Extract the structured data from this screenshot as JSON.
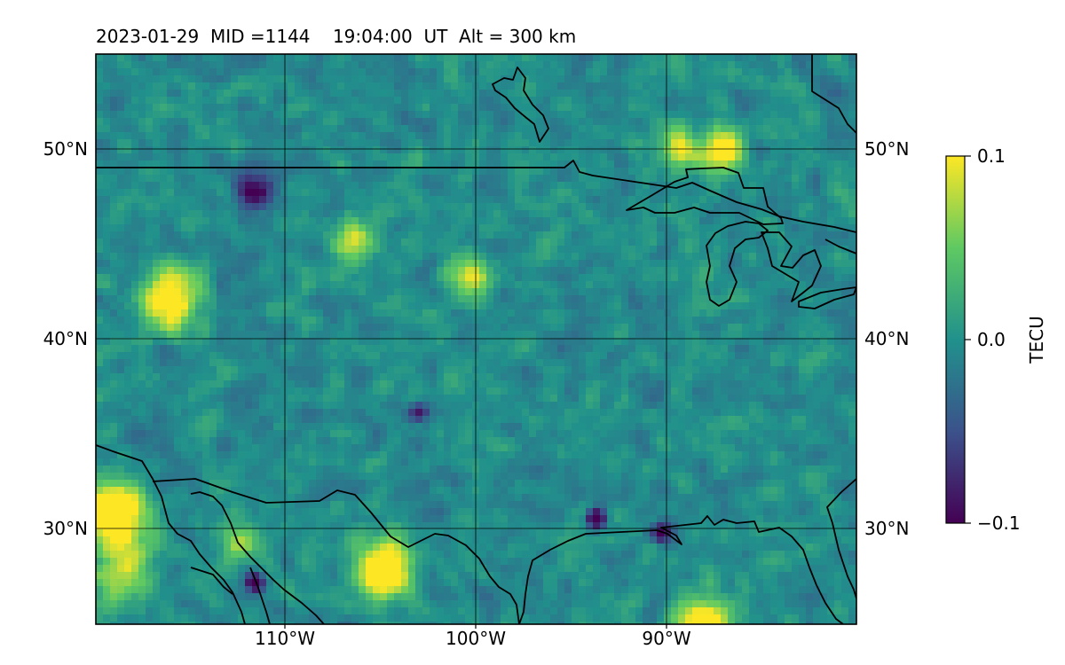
{
  "title": "2023-01-29  MID =1144    19:04:00  UT  Alt = 300 km",
  "map": {
    "lon_range": [
      -119.9,
      -80.1
    ],
    "lat_range": [
      25.0,
      55.0
    ],
    "gridlines": true,
    "lat_ticks": [
      {
        "value": 30,
        "label": "30°N"
      },
      {
        "value": 40,
        "label": "40°N"
      },
      {
        "value": 50,
        "label": "50°N"
      }
    ],
    "lon_ticks": [
      {
        "value": -110,
        "label": "110°W"
      },
      {
        "value": -100,
        "label": "100°W"
      },
      {
        "value": -90,
        "label": "90°W"
      }
    ],
    "overlays": [
      "coastlines",
      "country-borders"
    ]
  },
  "colorbar": {
    "label": "TECU",
    "colormap": "viridis",
    "min": -0.1,
    "max": 0.1,
    "ticks": [
      {
        "value": 0.1,
        "label": "0.1"
      },
      {
        "value": 0.0,
        "label": "0.0"
      },
      {
        "value": -0.1,
        "label": "−0.1"
      }
    ],
    "colors": [
      "#440154",
      "#3b528b",
      "#21918c",
      "#5ec962",
      "#fde725"
    ]
  }
}
